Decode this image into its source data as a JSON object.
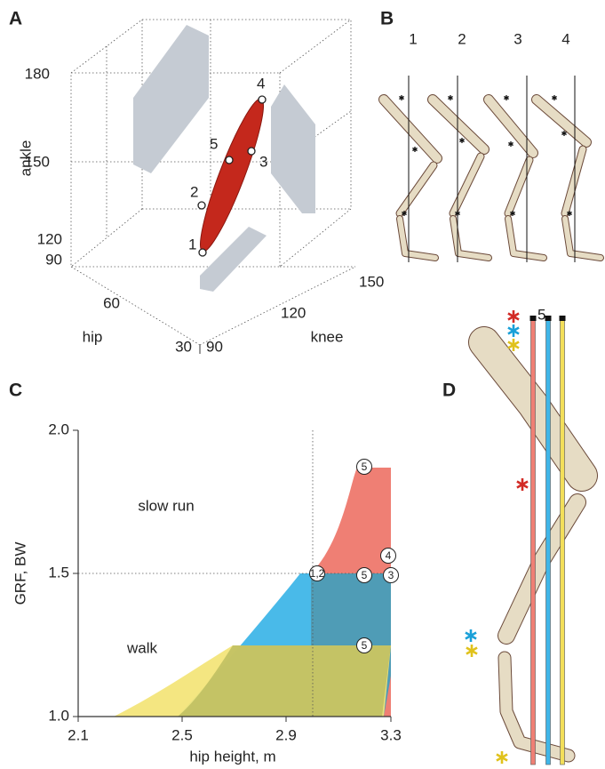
{
  "panel_a": {
    "label": "A",
    "z_axis": {
      "title": "ankle",
      "ticks": [
        "180",
        "150",
        "120"
      ]
    },
    "hip_axis": {
      "title": "hip",
      "ticks": [
        "90",
        "60",
        "30"
      ]
    },
    "knee_axis": {
      "title": "knee",
      "ticks": [
        "90",
        "120",
        "150"
      ]
    },
    "points": [
      "1",
      "2",
      "5",
      "3",
      "4"
    ]
  },
  "panel_b": {
    "label": "B",
    "poses": [
      "1",
      "2",
      "3",
      "4"
    ]
  },
  "panel_c": {
    "label": "C",
    "y_axis": {
      "title": "GRF, BW",
      "ticks": [
        "2.0",
        "1.5",
        "1.0"
      ]
    },
    "x_axis": {
      "title": "hip height, m",
      "ticks": [
        "2.1",
        "2.5",
        "2.9",
        "3.3"
      ]
    },
    "regions": [
      "slow run",
      "walk"
    ],
    "markers": [
      "5",
      "1,2",
      "5",
      "3",
      "4",
      "5"
    ]
  },
  "panel_d": {
    "label": "D",
    "pose": "5"
  }
}
